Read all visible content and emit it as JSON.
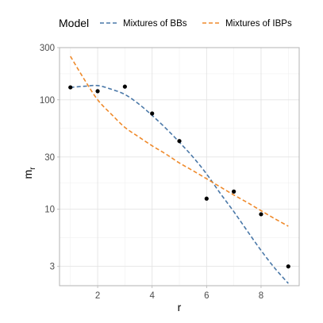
{
  "chart_data": {
    "type": "scatter",
    "title": "",
    "xlabel": "r",
    "ylabel_main": "m",
    "ylabel_sub": "r",
    "xlim": [
      0.6,
      9.4
    ],
    "ylim": [
      2.0,
      300
    ],
    "y_scale": "log",
    "xticks": [
      2,
      4,
      6,
      8
    ],
    "xtick_labels": [
      "2",
      "4",
      "6",
      "8"
    ],
    "yticks": [
      3,
      10,
      30,
      100,
      300
    ],
    "ytick_labels": [
      "3",
      "10",
      "30",
      "100",
      "300"
    ],
    "grid": true,
    "legend": {
      "title": "Model",
      "position": "top",
      "entries": [
        {
          "label": "Mixtures of BBs",
          "color": "#4a78a8"
        },
        {
          "label": "Mixtures of IBPs",
          "color": "#ef8a2b"
        }
      ]
    },
    "points": {
      "x": [
        1,
        2,
        3,
        4,
        5,
        6,
        7,
        8,
        9
      ],
      "y": [
        130,
        120,
        132,
        75,
        42,
        12.5,
        14.5,
        9,
        3
      ]
    },
    "series": [
      {
        "name": "Mixtures of BBs",
        "color": "#4a78a8",
        "style": "dashed",
        "x": [
          1,
          1.5,
          2,
          2.5,
          3,
          3.5,
          4,
          4.5,
          5,
          5.5,
          6,
          6.5,
          7,
          7.5,
          8,
          8.5,
          9
        ],
        "y": [
          130,
          133,
          135,
          125,
          112,
          92,
          72,
          55,
          41,
          30,
          21,
          14,
          9.5,
          6.3,
          4.2,
          2.9,
          2.1
        ]
      },
      {
        "name": "Mixtures of IBPs",
        "color": "#ef8a2b",
        "style": "dashed",
        "x": [
          1,
          1.5,
          2,
          2.5,
          3,
          3.5,
          4,
          4.5,
          5,
          5.5,
          6,
          6.5,
          7,
          7.5,
          8,
          8.5,
          9
        ],
        "y": [
          250,
          155,
          100,
          74,
          56,
          46,
          38,
          32,
          26.5,
          22.5,
          19,
          16,
          13.5,
          11.5,
          9.7,
          8.2,
          7
        ]
      }
    ]
  }
}
